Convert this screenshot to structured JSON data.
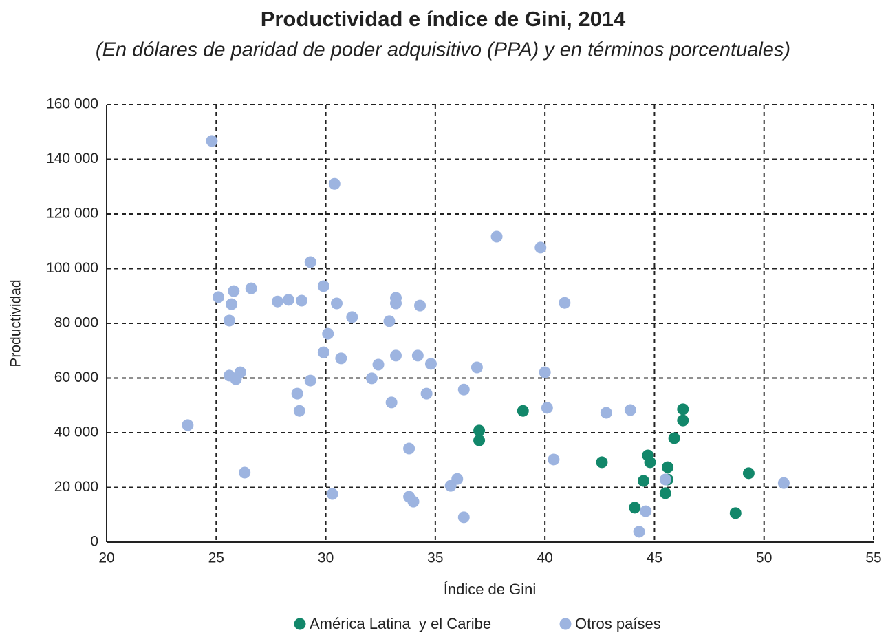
{
  "chart_data": {
    "type": "scatter",
    "title": "Productividad e índice de Gini, 2014",
    "subtitle": "(En dólares de paridad de poder adquisitivo (PPA) y en términos porcentuales)",
    "xlabel": "Índice de Gini",
    "ylabel": "Productividad",
    "xlim": [
      20,
      55
    ],
    "xticks": [
      20,
      25,
      30,
      35,
      40,
      45,
      50,
      55
    ],
    "ylim": [
      0,
      160000
    ],
    "yticks": [
      0,
      {
        "value": 20000,
        "label": "20 000"
      },
      {
        "value": 40000,
        "label": "40 000"
      },
      {
        "value": 60000,
        "label": "60 000"
      },
      {
        "value": 80000,
        "label": "80 000"
      },
      {
        "value": 100000,
        "label": "100 000"
      },
      {
        "value": 120000,
        "label": "120 000"
      },
      {
        "value": 140000,
        "label": "140 000"
      },
      {
        "value": 160000,
        "label": "160 000"
      }
    ],
    "grid": true,
    "legend": "bottom",
    "series": [
      {
        "name": "América Latina  y el Caribe",
        "color": "#12876a",
        "x": [
          39.0,
          37.0,
          37.0,
          46.3,
          46.3,
          45.9,
          42.6,
          44.7,
          44.8,
          45.6,
          45.6,
          44.5,
          45.5,
          49.3,
          44.1,
          48.7
        ],
        "y": [
          48000,
          40800,
          37200,
          48600,
          44500,
          38000,
          29200,
          31700,
          29200,
          27400,
          22900,
          22400,
          17900,
          25200,
          12600,
          10600
        ]
      },
      {
        "name": "Otros países",
        "color": "#9db4e0",
        "x": [
          24.8,
          30.4,
          37.8,
          39.8,
          29.3,
          26.6,
          25.8,
          25.1,
          25.7,
          29.9,
          27.8,
          28.3,
          28.9,
          30.5,
          33.2,
          33.2,
          34.3,
          40.9,
          25.6,
          31.2,
          32.9,
          30.1,
          29.9,
          30.7,
          32.4,
          33.2,
          34.2,
          34.8,
          36.9,
          40.0,
          25.6,
          26.1,
          25.9,
          29.3,
          32.1,
          28.7,
          34.6,
          36.3,
          28.8,
          33.0,
          40.1,
          42.8,
          43.9,
          23.7,
          33.8,
          40.4,
          26.3,
          36.0,
          35.7,
          45.5,
          50.9,
          30.3,
          33.8,
          34.0,
          44.6,
          36.3,
          44.3
        ],
        "y": [
          146700,
          131000,
          111700,
          107700,
          102400,
          92800,
          91800,
          89600,
          87000,
          93600,
          88000,
          88600,
          88300,
          87300,
          89300,
          87300,
          86500,
          87500,
          81000,
          82300,
          80800,
          76200,
          69400,
          67200,
          64900,
          68200,
          68200,
          65200,
          63900,
          62100,
          60900,
          62100,
          59600,
          59100,
          59900,
          54300,
          54300,
          55800,
          48000,
          51100,
          49100,
          47300,
          48300,
          42800,
          34200,
          30200,
          25400,
          23100,
          20600,
          22900,
          21600,
          17600,
          16600,
          14800,
          11300,
          9100,
          3800
        ]
      }
    ]
  }
}
